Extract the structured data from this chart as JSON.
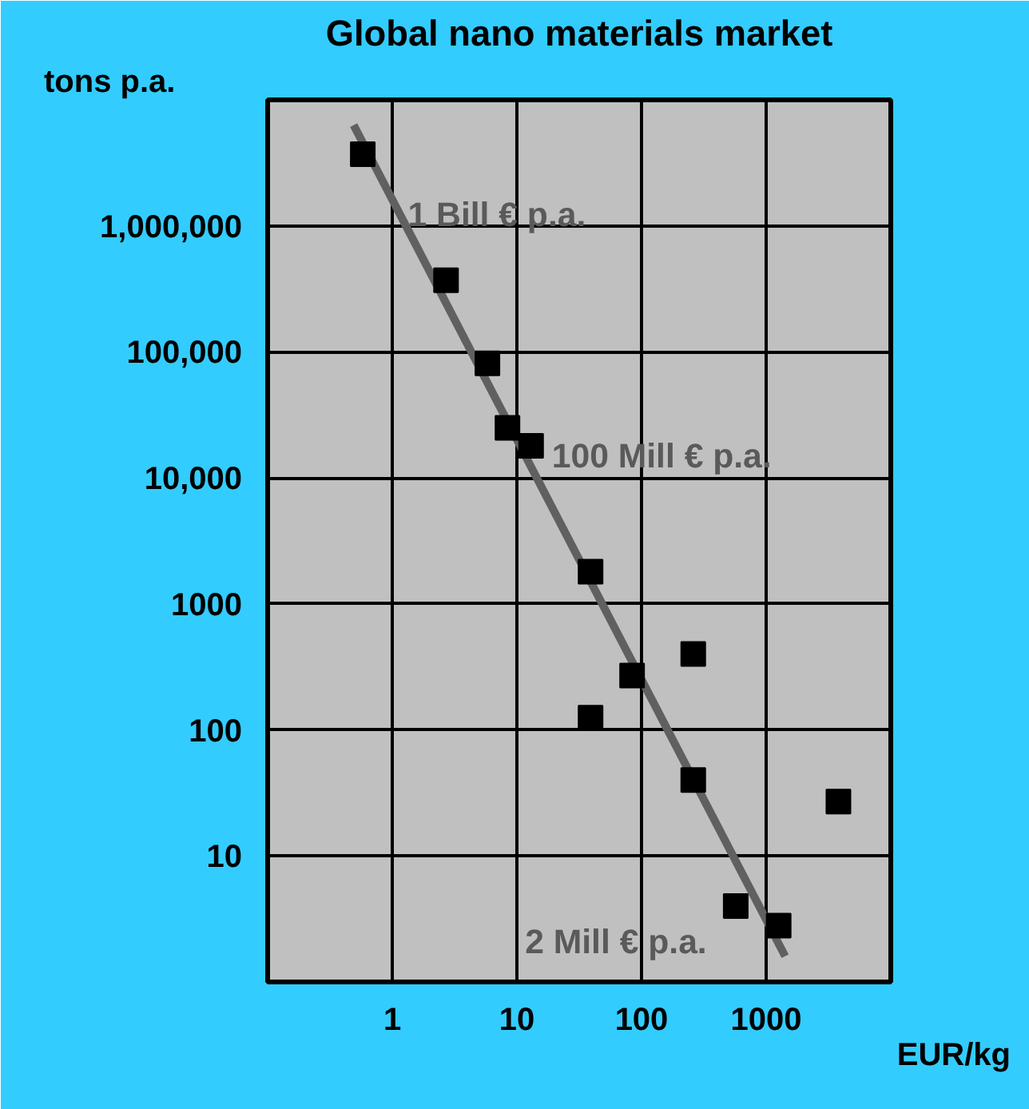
{
  "chart_data": {
    "type": "scatter",
    "title": "Global nano materials market",
    "xlabel": "EUR/kg",
    "ylabel": "tons p.a.",
    "log": "xy",
    "xlim": [
      0.1,
      10000
    ],
    "ylim": [
      1,
      10000000
    ],
    "xticks": [
      1,
      10,
      100,
      1000
    ],
    "yticks": [
      {
        "value": 10,
        "label": "10"
      },
      {
        "value": 100,
        "label": "100"
      },
      {
        "value": 1000,
        "label": "1000"
      },
      {
        "value": 10000,
        "label": "10,000"
      },
      {
        "value": 100000,
        "label": "100,000"
      },
      {
        "value": 1000000,
        "label": "1,000,000"
      }
    ],
    "grid": true,
    "marker": "square",
    "series": [
      {
        "color": "#000000",
        "x": [
          0.58,
          2.7,
          5.8,
          8.4,
          13,
          39,
          260,
          84,
          39,
          260,
          3800,
          570,
          1260
        ],
        "values": [
          3700000,
          370000,
          81000,
          25000,
          18000,
          1800,
          400,
          270,
          125,
          40,
          27,
          4,
          2.8
        ]
      },
      {
        "type": "line",
        "color": "#606060",
        "marker": "none",
        "line_style": "solid",
        "x": [
          0.49,
          1420
        ],
        "values": [
          6300000,
          1.6
        ]
      }
    ],
    "annotations": [
      "1 Bill € p.a.",
      "100 Mill € p.a.",
      "2 Mill € p.a."
    ]
  }
}
